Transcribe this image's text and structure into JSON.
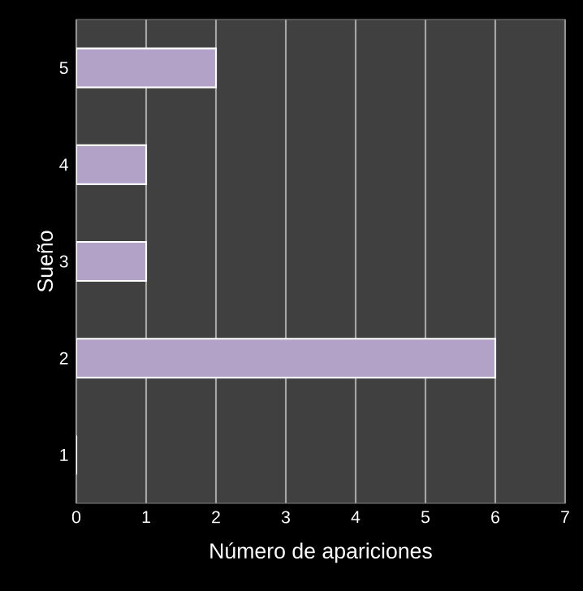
{
  "chart_data": {
    "type": "bar",
    "orientation": "horizontal",
    "xlabel": "Número de apariciones",
    "ylabel": "Sueño",
    "categories": [
      "5",
      "4",
      "3",
      "2",
      "1"
    ],
    "values": [
      2,
      1,
      1,
      6,
      0
    ],
    "color": "#b3a2c7",
    "xlim": [
      0,
      7
    ],
    "xticks": [
      0,
      1,
      2,
      3,
      4,
      5,
      6,
      7
    ],
    "grid": "x"
  }
}
